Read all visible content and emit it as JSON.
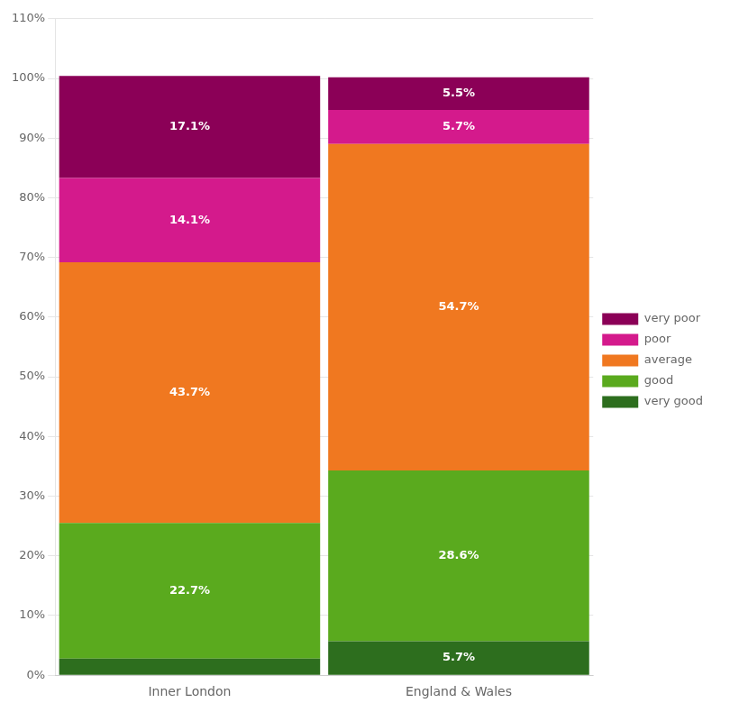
{
  "chart_data": {
    "type": "bar",
    "stacked": true,
    "data_labels": true,
    "grid": true,
    "legend": "right",
    "categories": [
      "Inner London",
      "England & Wales"
    ],
    "series": [
      {
        "name": "very good",
        "color": "#2d6e1e",
        "values": [
          2.8,
          5.7
        ],
        "value_labels": [
          null,
          "5.7%"
        ]
      },
      {
        "name": "good",
        "color": "#5aaa1e",
        "values": [
          22.7,
          28.6
        ],
        "value_labels": [
          "22.7%",
          "28.6%"
        ]
      },
      {
        "name": "average",
        "color": "#f07820",
        "values": [
          43.7,
          54.7
        ],
        "value_labels": [
          "43.7%",
          "54.7%"
        ]
      },
      {
        "name": "poor",
        "color": "#d41a8c",
        "values": [
          14.1,
          5.7
        ],
        "value_labels": [
          "14.1%",
          "5.7%"
        ]
      },
      {
        "name": "very poor",
        "color": "#8b0057",
        "values": [
          17.1,
          5.5
        ],
        "value_labels": [
          "17.1%",
          "5.5%"
        ]
      }
    ],
    "ylim": [
      0,
      110
    ],
    "yticks": [
      {
        "value": 0,
        "label": "0%"
      },
      {
        "value": 10,
        "label": "10%"
      },
      {
        "value": 20,
        "label": "20%"
      },
      {
        "value": 30,
        "label": "30%"
      },
      {
        "value": 40,
        "label": "40%"
      },
      {
        "value": 50,
        "label": "50%"
      },
      {
        "value": 60,
        "label": "60%"
      },
      {
        "value": 70,
        "label": "70%"
      },
      {
        "value": 80,
        "label": "80%"
      },
      {
        "value": 90,
        "label": "90%"
      },
      {
        "value": 100,
        "label": "100%"
      },
      {
        "value": 110,
        "label": "110%"
      }
    ]
  }
}
